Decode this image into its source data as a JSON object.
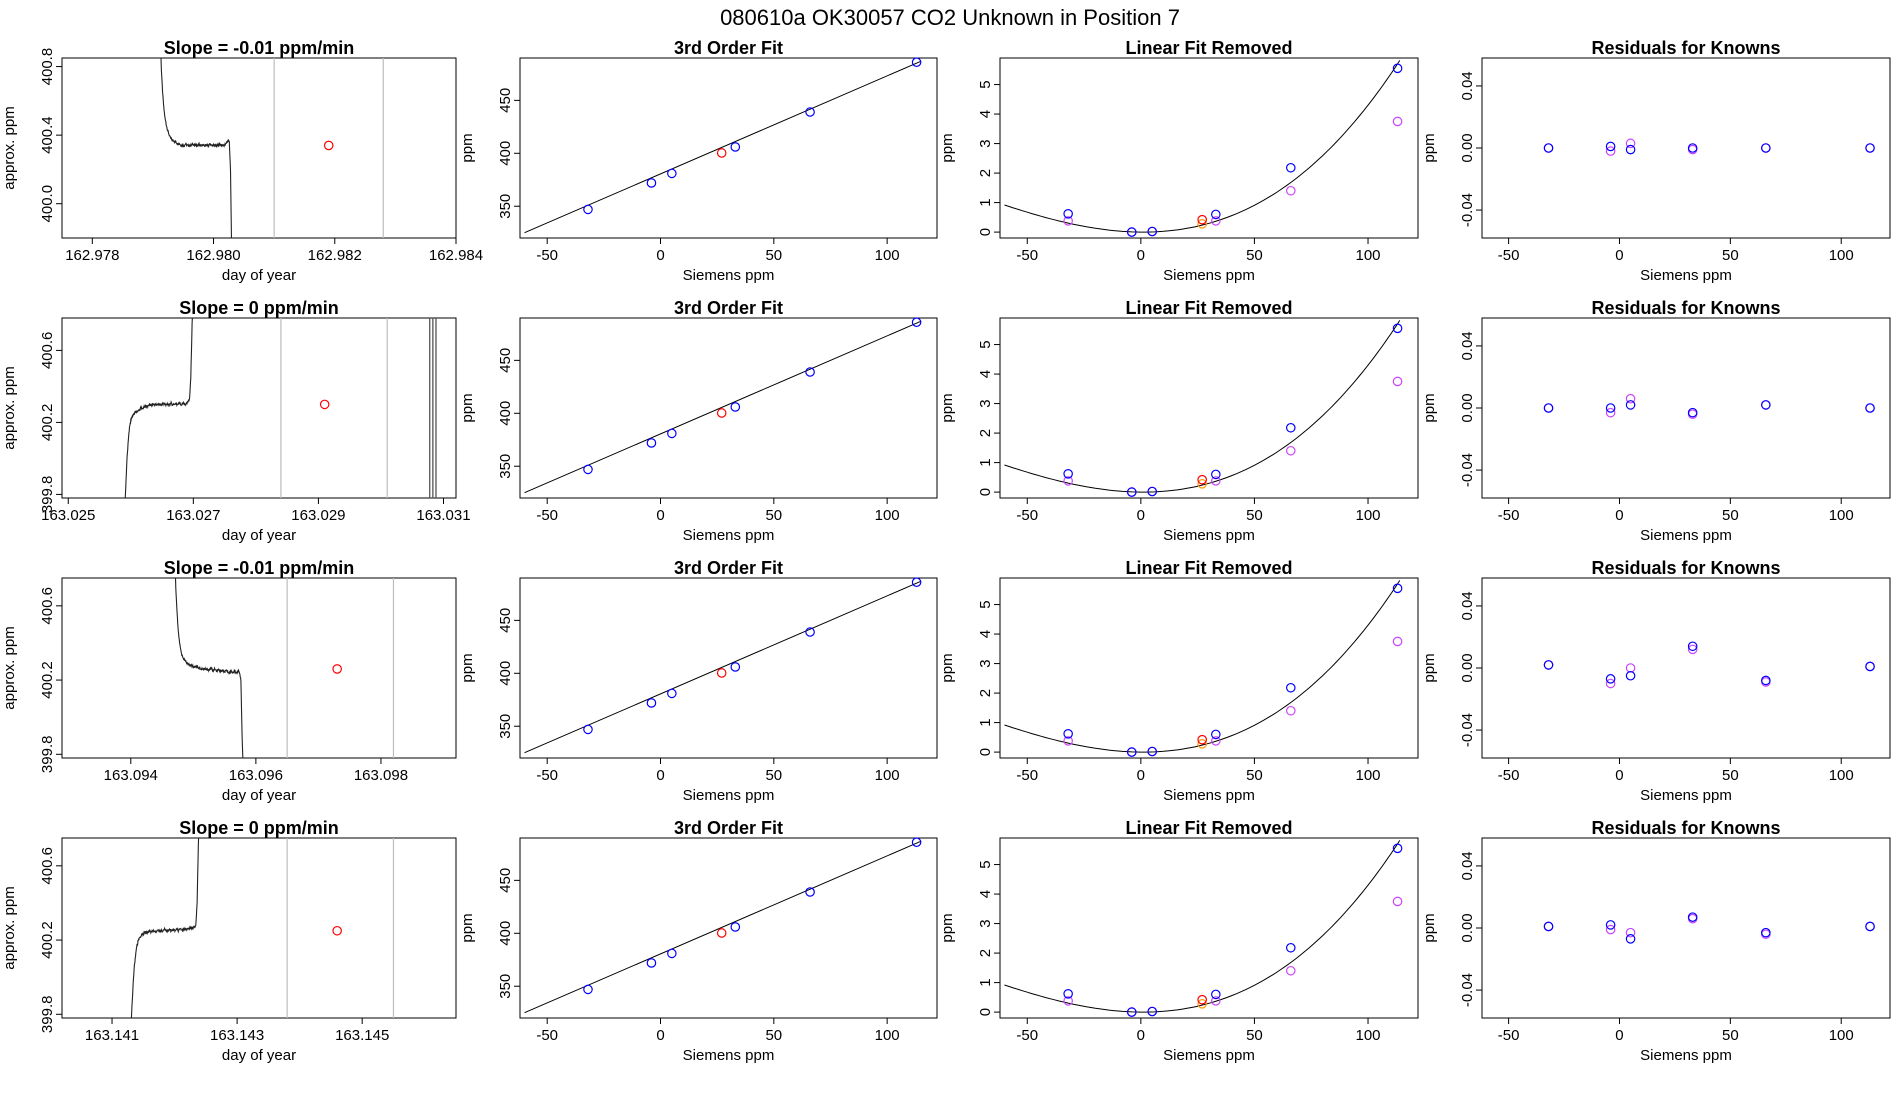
{
  "title": "080610a     OK30057   CO2 Unknown in Position  7",
  "colors": {
    "known": "#0000ff",
    "unknown": "#ff0000",
    "raw_known": "#cc44ff",
    "raw_unknown": "#ff9900",
    "fit": "#000000",
    "marker_line": "#bdbdbd"
  },
  "chart_data": [
    {
      "type": "line",
      "row": 1,
      "title": "Slope =  -0.01  ppm/min",
      "xlabel": "day of year",
      "ylabel": "approx. ppm",
      "xlim": [
        162.9775,
        162.984
      ],
      "ylim": [
        399.8,
        400.85
      ],
      "xticks": [
        "162.978",
        "162.980",
        "162.982",
        "162.984"
      ],
      "yticks": [
        "400.0",
        "400.4",
        "400.8"
      ],
      "markers_x": [
        162.981,
        162.9828
      ],
      "mean_point": {
        "x": 162.9819,
        "y": 400.34
      },
      "trace": {
        "start_x": 162.9791,
        "x_step": 2e-05,
        "shape": [
          401.3,
          401.0,
          400.78,
          400.65,
          400.56,
          400.5,
          400.46,
          400.43,
          400.41,
          400.39,
          400.38,
          400.37,
          400.37,
          400.36,
          400.36,
          400.35,
          400.35,
          400.35,
          400.34,
          400.34,
          400.34,
          400.34,
          400.35,
          400.34,
          400.34,
          400.34,
          400.34,
          400.34,
          400.35,
          400.34,
          400.34,
          400.34,
          400.34,
          400.35,
          400.34,
          400.34,
          400.34,
          400.34,
          400.34,
          400.34,
          400.34,
          400.34,
          400.35,
          400.34,
          400.34,
          400.34,
          400.34,
          400.34,
          400.34,
          400.34,
          400.35,
          400.34,
          400.34,
          400.34,
          400.34,
          400.35,
          400.36,
          400.37,
          400.36,
          400.2,
          399.7,
          399.0
        ]
      }
    },
    {
      "type": "line",
      "row": 2,
      "title": "Slope =  0  ppm/min",
      "xlabel": "day of year",
      "ylabel": "approx. ppm",
      "xlim": [
        163.0249,
        163.0312
      ],
      "ylim": [
        399.78,
        400.78
      ],
      "xticks": [
        "163.025",
        "163.027",
        "163.029",
        "163.031"
      ],
      "yticks": [
        "399.8",
        "400.2",
        "400.6"
      ],
      "markers_x": [
        163.0284,
        163.0301
      ],
      "mean_point": {
        "x": 163.0291,
        "y": 400.3
      },
      "spike_x": [
        163.03078,
        163.03083,
        163.03088
      ],
      "trace": {
        "start_x": 163.0259,
        "x_step": 2e-05,
        "shape": [
          399.7,
          399.85,
          400.0,
          400.1,
          400.17,
          400.21,
          400.23,
          400.24,
          400.25,
          400.26,
          400.26,
          400.27,
          400.27,
          400.28,
          400.28,
          400.28,
          400.29,
          400.29,
          400.29,
          400.29,
          400.3,
          400.29,
          400.3,
          400.3,
          400.3,
          400.3,
          400.3,
          400.3,
          400.3,
          400.3,
          400.3,
          400.31,
          400.3,
          400.3,
          400.3,
          400.3,
          400.3,
          400.31,
          400.3,
          400.3,
          400.3,
          400.3,
          400.3,
          400.3,
          400.31,
          400.3,
          400.3,
          400.31,
          400.3,
          400.3,
          400.31,
          400.32,
          400.33,
          400.45,
          400.75,
          400.9
        ]
      }
    },
    {
      "type": "line",
      "row": 3,
      "title": "Slope =  -0.01  ppm/min",
      "xlabel": "day of year",
      "ylabel": "approx. ppm",
      "xlim": [
        163.0929,
        163.0992
      ],
      "ylim": [
        399.78,
        400.75
      ],
      "xticks": [
        "163.094",
        "163.096",
        "163.098"
      ],
      "yticks": [
        "399.8",
        "400.2",
        "400.6"
      ],
      "markers_x": [
        163.0965,
        163.0982
      ],
      "mean_point": {
        "x": 163.0973,
        "y": 400.26
      },
      "trace": {
        "start_x": 163.0947,
        "x_step": 2e-05,
        "shape": [
          400.9,
          400.7,
          400.56,
          400.46,
          400.4,
          400.36,
          400.33,
          400.32,
          400.31,
          400.3,
          400.29,
          400.29,
          400.28,
          400.28,
          400.28,
          400.27,
          400.27,
          400.27,
          400.27,
          400.26,
          400.27,
          400.26,
          400.26,
          400.26,
          400.26,
          400.26,
          400.26,
          400.25,
          400.26,
          400.26,
          400.26,
          400.25,
          400.26,
          400.25,
          400.25,
          400.26,
          400.25,
          400.25,
          400.25,
          400.25,
          400.24,
          400.25,
          400.25,
          400.24,
          400.24,
          400.25,
          400.24,
          400.24,
          400.25,
          400.24,
          400.24,
          400.25,
          400.24,
          400.2,
          399.9,
          399.7
        ]
      }
    },
    {
      "type": "line",
      "row": 4,
      "title": "Slope =  0  ppm/min",
      "xlabel": "day of year",
      "ylabel": "approx. ppm",
      "xlim": [
        163.1402,
        163.1465
      ],
      "ylim": [
        399.78,
        400.75
      ],
      "xticks": [
        "163.141",
        "163.143",
        "163.145"
      ],
      "yticks": [
        "399.8",
        "400.2",
        "400.6"
      ],
      "markers_x": [
        163.1438,
        163.1455
      ],
      "mean_point": {
        "x": 163.1446,
        "y": 400.25
      },
      "trace": {
        "start_x": 163.1413,
        "x_step": 2e-05,
        "shape": [
          399.7,
          399.85,
          399.98,
          400.07,
          400.13,
          400.17,
          400.2,
          400.21,
          400.22,
          400.23,
          400.23,
          400.24,
          400.24,
          400.24,
          400.24,
          400.25,
          400.24,
          400.25,
          400.25,
          400.25,
          400.24,
          400.25,
          400.25,
          400.25,
          400.25,
          400.25,
          400.25,
          400.26,
          400.25,
          400.25,
          400.25,
          400.26,
          400.25,
          400.25,
          400.26,
          400.25,
          400.25,
          400.26,
          400.25,
          400.26,
          400.26,
          400.25,
          400.26,
          400.26,
          400.26,
          400.26,
          400.26,
          400.26,
          400.27,
          400.26,
          400.27,
          400.27,
          400.28,
          400.4,
          400.7,
          400.9
        ]
      }
    },
    {
      "type": "scatter",
      "panel": "fit",
      "title": "3rd Order Fit",
      "xlabel": "Siemens ppm",
      "ylabel": "ppm",
      "xlim": [
        -62,
        122
      ],
      "ylim": [
        320,
        490
      ],
      "xticks": [
        "-50",
        "0",
        "50",
        "100"
      ],
      "yticks": [
        "350",
        "400",
        "450"
      ],
      "fit_line": {
        "x0": -60,
        "y0": 325,
        "x1": 115,
        "y1": 487
      },
      "knowns": [
        [
          -32,
          347
        ],
        [
          -4,
          372
        ],
        [
          5,
          381
        ],
        [
          33,
          406
        ],
        [
          66,
          439
        ],
        [
          113,
          486
        ]
      ],
      "unknown": [
        [
          27,
          400.3
        ]
      ]
    },
    {
      "type": "scatter",
      "panel": "linear-removed",
      "title": "Linear Fit Removed",
      "xlabel": "Siemens ppm",
      "ylabel": "ppm",
      "xlim": [
        -62,
        122
      ],
      "ylim": [
        -0.2,
        5.9
      ],
      "xticks": [
        "-50",
        "0",
        "50",
        "100"
      ],
      "yticks": [
        "0",
        "1",
        "2",
        "3",
        "4",
        "5"
      ],
      "curve_coeffs": [
        0.0155,
        0.00032,
        2.8e-06,
        0.0
      ],
      "knowns": [
        [
          -32,
          0.62
        ],
        [
          -4,
          0.0
        ],
        [
          5,
          0.02
        ],
        [
          33,
          0.6
        ],
        [
          66,
          2.18
        ],
        [
          113,
          5.55
        ]
      ],
      "raw_knowns": [
        [
          -32,
          0.38
        ],
        [
          -4,
          0.0
        ],
        [
          5,
          0.02
        ],
        [
          33,
          0.38
        ],
        [
          66,
          1.4
        ],
        [
          113,
          3.75
        ]
      ],
      "unknown": [
        [
          27,
          0.42
        ]
      ],
      "raw_unknown": [
        [
          27,
          0.28
        ]
      ]
    },
    {
      "type": "scatter",
      "panel": "residuals",
      "title": "Residuals for Knowns",
      "xlabel": "Siemens ppm",
      "ylabel": "ppm",
      "xlim": [
        -62,
        122
      ],
      "ylim": [
        -0.058,
        0.058
      ],
      "xticks": [
        "-50",
        "0",
        "50",
        "100"
      ],
      "yticks": [
        "-0.04",
        "0.00",
        "0.04"
      ],
      "rows": [
        {
          "knowns": [
            [
              -32,
              0.0
            ],
            [
              -4,
              0.001
            ],
            [
              5,
              -0.001
            ],
            [
              33,
              0.0
            ],
            [
              66,
              0.0
            ],
            [
              113,
              0.0
            ]
          ],
          "raw_knowns": [
            [
              -32,
              0.0
            ],
            [
              -4,
              -0.002
            ],
            [
              5,
              0.003
            ],
            [
              33,
              -0.001
            ],
            [
              66,
              0.0
            ],
            [
              113,
              0.0
            ]
          ]
        },
        {
          "knowns": [
            [
              -32,
              0.0
            ],
            [
              -4,
              0.0
            ],
            [
              5,
              0.002
            ],
            [
              33,
              -0.003
            ],
            [
              66,
              0.002
            ],
            [
              113,
              0.0
            ]
          ],
          "raw_knowns": [
            [
              -32,
              0.0
            ],
            [
              -4,
              -0.003
            ],
            [
              5,
              0.006
            ],
            [
              33,
              -0.004
            ],
            [
              66,
              0.002
            ],
            [
              113,
              0.0
            ]
          ]
        },
        {
          "knowns": [
            [
              -32,
              0.002
            ],
            [
              -4,
              -0.007
            ],
            [
              5,
              -0.005
            ],
            [
              33,
              0.014
            ],
            [
              66,
              -0.008
            ],
            [
              113,
              0.001
            ]
          ],
          "raw_knowns": [
            [
              -32,
              0.002
            ],
            [
              -4,
              -0.01
            ],
            [
              5,
              0.0
            ],
            [
              33,
              0.012
            ],
            [
              66,
              -0.009
            ],
            [
              113,
              0.001
            ]
          ]
        },
        {
          "knowns": [
            [
              -32,
              0.001
            ],
            [
              -4,
              0.002
            ],
            [
              5,
              -0.007
            ],
            [
              33,
              0.007
            ],
            [
              66,
              -0.003
            ],
            [
              113,
              0.001
            ]
          ],
          "raw_knowns": [
            [
              -32,
              0.001
            ],
            [
              -4,
              -0.001
            ],
            [
              5,
              -0.003
            ],
            [
              33,
              0.006
            ],
            [
              66,
              -0.004
            ],
            [
              113,
              0.001
            ]
          ]
        }
      ]
    }
  ]
}
